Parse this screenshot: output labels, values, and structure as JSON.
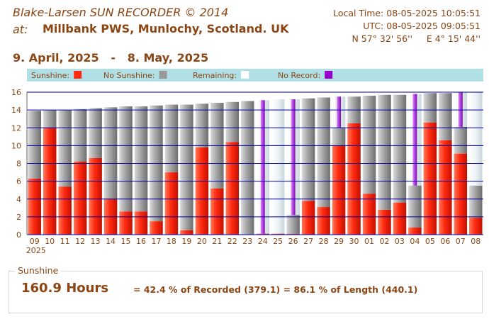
{
  "header": {
    "title": "Blake-Larsen SUN RECORDER © 2014",
    "at_label": "at:",
    "station": "Millbank PWS, Munlochy, Scotland. UK",
    "local_time": "Local Time: 08-05-2025 10:05:51",
    "utc_time": "UTC: 08-05-2025 09:05:51",
    "coordinates": "N 57° 32' 56''     E 4° 15' 44''"
  },
  "date_range": "9. April, 2025   -   8. May, 2025",
  "colors": {
    "sunshine": "#ff2a10",
    "no_sunshine": "#999999",
    "remaining": "#ffffff",
    "no_record": "#9900cc",
    "legend_bg": "#b0e0e6",
    "gridline": "#0000aa",
    "text": "#8b4513"
  },
  "chart_data": {
    "type": "bar",
    "legend": [
      {
        "key": "sunshine",
        "label": "Sunshine:"
      },
      {
        "key": "no_sunshine",
        "label": "No Sunshine:"
      },
      {
        "key": "remaining",
        "label": "Remaining:"
      },
      {
        "key": "no_record",
        "label": "No Record:"
      }
    ],
    "ylim": [
      0,
      16
    ],
    "yticks": [
      0,
      2,
      4,
      6,
      8,
      10,
      12,
      14,
      16
    ],
    "grid": true,
    "categories": [
      "09",
      "10",
      "11",
      "12",
      "13",
      "14",
      "15",
      "16",
      "17",
      "18",
      "19",
      "20",
      "21",
      "22",
      "23",
      "24",
      "25",
      "26",
      "27",
      "28",
      "29",
      "30",
      "01",
      "02",
      "03",
      "04",
      "05",
      "06",
      "07",
      "08"
    ],
    "first_category_year": "2025",
    "day_length": [
      13.9,
      14.0,
      14.0,
      14.1,
      14.2,
      14.3,
      14.4,
      14.4,
      14.5,
      14.6,
      14.6,
      14.7,
      14.8,
      14.9,
      15.0,
      15.1,
      15.2,
      15.2,
      15.3,
      15.4,
      15.5,
      15.5,
      15.6,
      15.7,
      15.7,
      15.8,
      15.9,
      15.9,
      16.0,
      16.0
    ],
    "series": [
      {
        "name": "Sunshine",
        "key": "sunshine",
        "values": [
          6.3,
          12.0,
          5.4,
          8.2,
          8.6,
          4.0,
          2.6,
          2.6,
          1.5,
          7.0,
          0.5,
          9.8,
          5.2,
          10.4,
          0.0,
          0.1,
          0.1,
          0.1,
          3.8,
          3.1,
          10.0,
          12.5,
          4.6,
          2.8,
          3.6,
          0.8,
          12.6,
          10.6,
          9.1,
          1.9
        ]
      },
      {
        "name": "No Sunshine",
        "key": "no_sunshine",
        "values": [
          7.6,
          2.0,
          8.6,
          5.9,
          5.6,
          10.3,
          11.8,
          11.8,
          13.0,
          7.6,
          14.1,
          4.9,
          9.6,
          4.5,
          15.0,
          0.0,
          0.0,
          2.1,
          11.5,
          12.3,
          2.0,
          3.0,
          11.0,
          12.9,
          12.1,
          4.7,
          3.3,
          5.3,
          3.0,
          3.6
        ]
      },
      {
        "name": "No Record",
        "key": "no_record",
        "values": [
          0,
          0,
          0,
          0,
          0,
          0,
          0,
          0,
          0,
          0,
          0,
          0,
          0,
          0,
          0,
          15.0,
          0,
          13.0,
          0,
          0,
          3.5,
          0,
          0,
          0,
          0,
          10.3,
          0,
          0,
          3.9,
          0
        ]
      }
    ]
  },
  "summary": {
    "legend": "Sunshine",
    "hours": "160.9 Hours",
    "breakdown": "= 42.4 % of Recorded (379.1) = 86.1 % of Length (440.1)"
  }
}
